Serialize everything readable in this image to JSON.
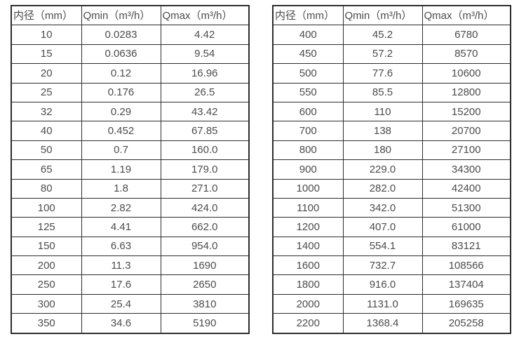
{
  "page": {
    "background_color": "#ffffff",
    "border_color": "#2d2d2d",
    "text_color": "#4c4c4c"
  },
  "tables": [
    {
      "name": "small-diameter-flow-table",
      "headers": [
        "内径（mm）",
        "Qmin（m³/h）",
        "Qmax（m³/h）"
      ],
      "rows": [
        [
          "10",
          "0.0283",
          "4.42"
        ],
        [
          "15",
          "0.0636",
          "9.54"
        ],
        [
          "20",
          "0.12",
          "16.96"
        ],
        [
          "25",
          "0.176",
          "26.5"
        ],
        [
          "32",
          "0.29",
          "43.42"
        ],
        [
          "40",
          "0.452",
          "67.85"
        ],
        [
          "50",
          "0.7",
          "160.0"
        ],
        [
          "65",
          "1.19",
          "179.0"
        ],
        [
          "80",
          "1.8",
          "271.0"
        ],
        [
          "100",
          "2.82",
          "424.0"
        ],
        [
          "125",
          "4.41",
          "662.0"
        ],
        [
          "150",
          "6.63",
          "954.0"
        ],
        [
          "200",
          "11.3",
          "1690"
        ],
        [
          "250",
          "17.6",
          "2650"
        ],
        [
          "300",
          "25.4",
          "3810"
        ],
        [
          "350",
          "34.6",
          "5190"
        ]
      ]
    },
    {
      "name": "large-diameter-flow-table",
      "headers": [
        "内径（mm）",
        "Qmin（m³/h）",
        "Qmax（m³/h）"
      ],
      "rows": [
        [
          "400",
          "45.2",
          "6780"
        ],
        [
          "450",
          "57.2",
          "8570"
        ],
        [
          "500",
          "77.6",
          "10600"
        ],
        [
          "550",
          "85.5",
          "12800"
        ],
        [
          "600",
          "110",
          "15200"
        ],
        [
          "700",
          "138",
          "20700"
        ],
        [
          "800",
          "180",
          "27100"
        ],
        [
          "900",
          "229.0",
          "34300"
        ],
        [
          "1000",
          "282.0",
          "42400"
        ],
        [
          "1100",
          "342.0",
          "51300"
        ],
        [
          "1200",
          "407.0",
          "61000"
        ],
        [
          "1400",
          "554.1",
          "83121"
        ],
        [
          "1600",
          "732.7",
          "108566"
        ],
        [
          "1800",
          "916.0",
          "137404"
        ],
        [
          "2000",
          "1131.0",
          "169635"
        ],
        [
          "2200",
          "1368.4",
          "205258"
        ]
      ]
    }
  ]
}
